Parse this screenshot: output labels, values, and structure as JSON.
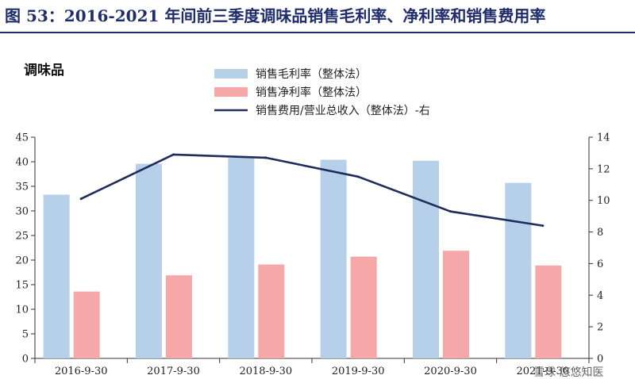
{
  "figure_title": "图 53：2016-2021 年间前三季度调味品销售毛利率、净利率和销售费用率",
  "watermark": "雪球 悠悠知医",
  "chart_data": {
    "type": "bar",
    "title": "调味品",
    "categories": [
      "2016-9-30",
      "2017-9-30",
      "2018-9-30",
      "2019-9-30",
      "2020-9-30",
      "2021-9-30"
    ],
    "category_labels": [
      "2016-9-30",
      "2017-9-30",
      "2018-9-30",
      "2019-9-30",
      "2020-9-30",
      "2021-9-30"
    ],
    "series": [
      {
        "name": "销售毛利率（整体法）",
        "type": "bar",
        "axis": "left",
        "color": "#b7d0e9",
        "values": [
          33.3,
          39.6,
          40.8,
          40.4,
          40.2,
          35.7
        ]
      },
      {
        "name": "销售净利率（整体法）",
        "type": "bar",
        "axis": "left",
        "color": "#f6a8a8",
        "values": [
          13.6,
          16.9,
          19.1,
          20.7,
          21.9,
          18.9
        ]
      },
      {
        "name": "销售费用/营业总收入（整体法）-右",
        "type": "line",
        "axis": "right",
        "color": "#1f2d5c",
        "values": [
          10.1,
          12.9,
          12.7,
          11.5,
          9.3,
          8.4
        ]
      }
    ],
    "ylim_left": [
      0,
      45
    ],
    "yticks_left": [
      0,
      5,
      10,
      15,
      20,
      25,
      30,
      35,
      40,
      45
    ],
    "ylim_right": [
      0,
      14
    ],
    "yticks_right": [
      0,
      2,
      4,
      6,
      8,
      10,
      12,
      14
    ],
    "grid": false,
    "legend_position": "top-center"
  }
}
